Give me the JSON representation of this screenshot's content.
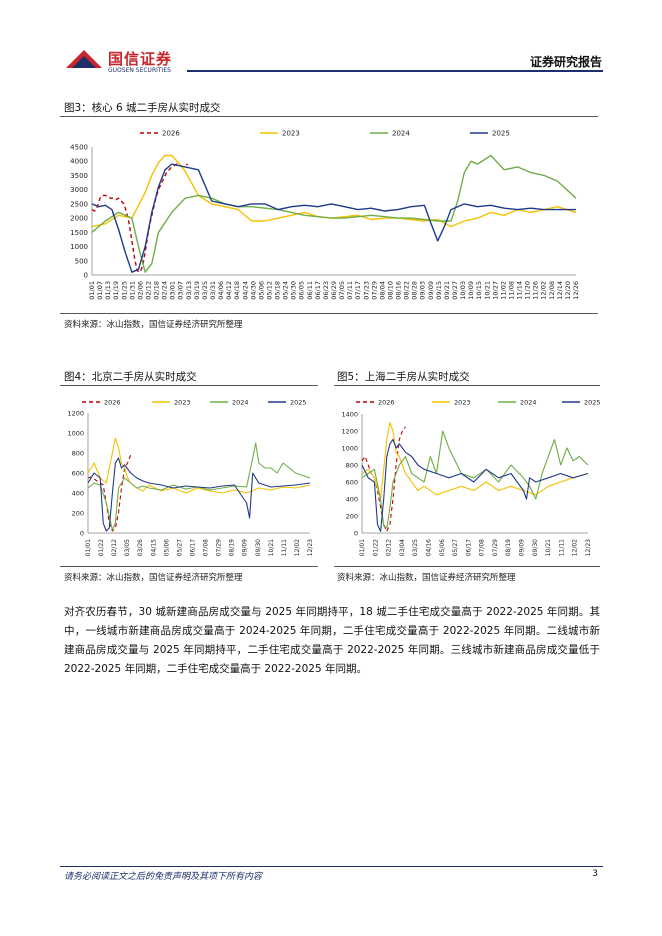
{
  "header": {
    "company_cn": "国信证券",
    "company_en": "GUOSEN SECURITIES",
    "report_type": "证券研究报告",
    "brand_red": "#c8262c",
    "brand_blue": "#1d2e6b"
  },
  "fig3": {
    "title": "图3：核心 6 城二手房从实时成交",
    "source": "资料来源：冰山指数，国信证券经济研究所整理"
  },
  "fig4": {
    "title": "图4：北京二手房从实时成交",
    "source": "资料来源：冰山指数，国信证券经济研究所整理"
  },
  "fig5": {
    "title": "图5：上海二手房从实时成交",
    "source": "资料来源：冰山指数，国信证券经济研究所整理"
  },
  "body": {
    "paragraph": "对齐农历春节，30 城新建商品房成交量与 2025 年同期持平，18 城二手住宅成交量高于 2022-2025 年同期。其中，一线城市新建商品房成交量高于 2024-2025 年同期，二手住宅成交量高于 2022-2025 年同期。二线城市新建商品房成交量与 2025 年同期持平，二手住宅成交量高于 2022-2025 年同期。三线城市新建商品房成交量低于 2022-2025 年同期，二手住宅成交量高于 2022-2025 年同期。"
  },
  "footer": {
    "disclaimer": "请务必阅读正文之后的免责声明及其项下所有内容",
    "page": "3"
  },
  "chart_data": [
    {
      "id": "fig3",
      "type": "line",
      "ylim": [
        0,
        4500
      ],
      "yticks": [
        "0",
        "500",
        "1000",
        "1500",
        "2000",
        "2500",
        "3000",
        "3500",
        "4000",
        "4500"
      ],
      "xticks": [
        "01/01",
        "01/07",
        "01/13",
        "01/19",
        "01/25",
        "01/31",
        "02/06",
        "02/12",
        "02/18",
        "02/24",
        "03/01",
        "03/07",
        "03/13",
        "03/19",
        "03/25",
        "03/31",
        "04/06",
        "04/12",
        "04/18",
        "04/24",
        "04/30",
        "05/06",
        "05/12",
        "05/18",
        "05/24",
        "05/30",
        "06/05",
        "06/11",
        "06/17",
        "06/23",
        "06/29",
        "07/05",
        "07/11",
        "07/17",
        "07/23",
        "07/29",
        "08/04",
        "08/10",
        "08/16",
        "08/22",
        "08/28",
        "09/03",
        "09/09",
        "09/15",
        "09/21",
        "09/27",
        "10/03",
        "10/09",
        "10/15",
        "10/21",
        "10/27",
        "11/02",
        "11/08",
        "11/14",
        "11/20",
        "11/26",
        "12/02",
        "12/08",
        "12/14",
        "12/20",
        "12/26"
      ],
      "legend": [
        "2026",
        "2023",
        "2024",
        "2025"
      ],
      "legend_position": "top",
      "series": [
        {
          "name": "2026",
          "color": "#c00000",
          "dashed": true,
          "x": [
            0,
            2,
            4,
            6,
            8,
            10,
            12,
            14,
            16,
            18,
            20,
            22,
            24,
            26,
            28,
            30,
            32,
            34,
            36,
            38,
            40,
            42,
            44,
            46,
            48,
            50,
            52,
            54,
            56,
            58,
            60,
            62,
            64,
            66,
            68,
            70,
            72
          ],
          "y": [
            2300,
            2250,
            2400,
            2700,
            2800,
            2800,
            2750,
            2700,
            2700,
            2650,
            2700,
            2600,
            2500,
            2200,
            1800,
            1200,
            600,
            150,
            100,
            300,
            800,
            1400,
            1900,
            2300,
            2700,
            3000,
            3200,
            3400,
            3600,
            3700,
            3800,
            3850,
            3900,
            3850,
            3800,
            3850,
            3900
          ]
        },
        {
          "name": "2023",
          "color": "#f5c000",
          "x": [
            0,
            10,
            20,
            30,
            40,
            45,
            50,
            55,
            60,
            65,
            70,
            80,
            90,
            100,
            110,
            120,
            130,
            140,
            150,
            160,
            170,
            180,
            190,
            200,
            210,
            220,
            230,
            240,
            250,
            260,
            270,
            280,
            290,
            300,
            310,
            320,
            330,
            340,
            350,
            364
          ],
          "y": [
            1700,
            1800,
            2100,
            2000,
            2900,
            3500,
            3950,
            4200,
            4200,
            3950,
            3650,
            2800,
            2500,
            2400,
            2300,
            1900,
            1900,
            2000,
            2100,
            2200,
            2050,
            2000,
            2050,
            2100,
            1950,
            2000,
            2000,
            1950,
            1900,
            1950,
            1700,
            1900,
            2000,
            2200,
            2100,
            2300,
            2200,
            2300,
            2400,
            2200
          ]
        },
        {
          "name": "2024",
          "color": "#70ad47",
          "x": [
            0,
            10,
            20,
            30,
            35,
            40,
            45,
            50,
            60,
            70,
            80,
            90,
            100,
            110,
            120,
            130,
            140,
            150,
            160,
            170,
            180,
            190,
            200,
            210,
            220,
            230,
            240,
            250,
            260,
            270,
            275,
            280,
            285,
            290,
            300,
            310,
            320,
            330,
            340,
            350,
            364
          ],
          "y": [
            1500,
            1900,
            2200,
            2000,
            1000,
            100,
            400,
            1500,
            2200,
            2700,
            2800,
            2700,
            2500,
            2400,
            2400,
            2350,
            2300,
            2200,
            2100,
            2050,
            2000,
            2000,
            2050,
            2100,
            2050,
            2000,
            2000,
            1950,
            1900,
            1900,
            2600,
            3600,
            4000,
            3900,
            4200,
            3700,
            3800,
            3600,
            3500,
            3300,
            2700
          ]
        },
        {
          "name": "2025",
          "color": "#1f3a8a",
          "x": [
            0,
            5,
            10,
            15,
            20,
            25,
            30,
            35,
            40,
            45,
            50,
            55,
            60,
            70,
            80,
            90,
            100,
            110,
            120,
            130,
            140,
            150,
            160,
            170,
            180,
            190,
            200,
            210,
            220,
            230,
            240,
            250,
            255,
            260,
            265,
            270,
            280,
            290,
            300,
            310,
            320,
            330,
            340,
            350,
            364
          ],
          "y": [
            2500,
            2400,
            2450,
            2300,
            1600,
            800,
            100,
            200,
            1000,
            2200,
            3100,
            3700,
            3900,
            3800,
            3700,
            2600,
            2500,
            2400,
            2500,
            2500,
            2300,
            2400,
            2450,
            2400,
            2500,
            2400,
            2300,
            2350,
            2250,
            2300,
            2400,
            2450,
            1800,
            1200,
            1700,
            2300,
            2500,
            2400,
            2450,
            2350,
            2300,
            2350,
            2300,
            2300,
            2300
          ]
        }
      ]
    },
    {
      "id": "fig4",
      "type": "line",
      "ylim": [
        0,
        1200
      ],
      "yticks": [
        "0",
        "200",
        "400",
        "600",
        "800",
        "1000",
        "1200"
      ],
      "xticks": [
        "01/01",
        "01/22",
        "02/12",
        "03/05",
        "03/26",
        "04/15",
        "05/06",
        "05/27",
        "06/17",
        "07/08",
        "07/29",
        "08/19",
        "09/09",
        "09/30",
        "10/21",
        "11/11",
        "12/02",
        "12/23"
      ],
      "legend": [
        "2026",
        "2023",
        "2024",
        "2025"
      ],
      "legend_position": "top",
      "series": [
        {
          "name": "2026",
          "color": "#c00000",
          "dashed": true,
          "x": [
            0,
            5,
            10,
            15,
            20,
            25,
            30,
            35,
            40,
            45,
            50,
            55,
            60,
            65,
            70
          ],
          "y": [
            550,
            560,
            540,
            520,
            500,
            480,
            300,
            100,
            20,
            50,
            200,
            450,
            650,
            700,
            780
          ]
        },
        {
          "name": "2023",
          "color": "#f5c000",
          "x": [
            0,
            10,
            20,
            30,
            40,
            45,
            50,
            55,
            60,
            65,
            70,
            80,
            90,
            100,
            120,
            140,
            160,
            180,
            200,
            220,
            240,
            260,
            280,
            300,
            320,
            340,
            364
          ],
          "y": [
            600,
            700,
            550,
            500,
            800,
            950,
            850,
            700,
            650,
            550,
            500,
            450,
            420,
            480,
            420,
            450,
            400,
            450,
            420,
            400,
            430,
            400,
            450,
            430,
            460,
            450,
            480
          ]
        },
        {
          "name": "2024",
          "color": "#70ad47",
          "x": [
            0,
            10,
            20,
            30,
            40,
            45,
            50,
            60,
            70,
            80,
            90,
            100,
            120,
            140,
            160,
            180,
            200,
            220,
            240,
            260,
            270,
            275,
            280,
            290,
            300,
            310,
            320,
            340,
            364
          ],
          "y": [
            450,
            500,
            480,
            300,
            30,
            100,
            450,
            550,
            500,
            450,
            470,
            450,
            430,
            480,
            440,
            460,
            430,
            450,
            470,
            460,
            750,
            900,
            700,
            650,
            650,
            600,
            700,
            600,
            550
          ]
        },
        {
          "name": "2025",
          "color": "#1f3a8a",
          "x": [
            0,
            10,
            20,
            25,
            30,
            35,
            40,
            45,
            50,
            55,
            60,
            70,
            80,
            90,
            100,
            120,
            140,
            160,
            180,
            200,
            220,
            240,
            260,
            265,
            270,
            280,
            290,
            300,
            320,
            340,
            364
          ],
          "y": [
            500,
            600,
            550,
            100,
            20,
            50,
            400,
            700,
            750,
            650,
            680,
            600,
            550,
            520,
            500,
            480,
            450,
            470,
            460,
            450,
            470,
            480,
            300,
            150,
            600,
            500,
            480,
            460,
            470,
            480,
            500
          ]
        }
      ]
    },
    {
      "id": "fig5",
      "type": "line",
      "ylim": [
        0,
        1400
      ],
      "yticks": [
        "0",
        "200",
        "400",
        "600",
        "800",
        "1000",
        "1200",
        "1400"
      ],
      "xticks": [
        "01/01",
        "01/22",
        "02/12",
        "03/04",
        "03/25",
        "04/16",
        "05/06",
        "05/27",
        "06/17",
        "07/08",
        "07/29",
        "08/19",
        "09/09",
        "09/30",
        "10/21",
        "11/11",
        "12/02",
        "12/23"
      ],
      "legend": [
        "2026",
        "2023",
        "2024",
        "2025"
      ],
      "legend_position": "top",
      "series": [
        {
          "name": "2026",
          "color": "#c00000",
          "dashed": true,
          "x": [
            0,
            5,
            10,
            15,
            20,
            25,
            30,
            35,
            40,
            45,
            50,
            55,
            60,
            65,
            70
          ],
          "y": [
            850,
            900,
            800,
            700,
            650,
            500,
            300,
            100,
            20,
            100,
            400,
            800,
            1100,
            1200,
            1250
          ]
        },
        {
          "name": "2023",
          "color": "#f5c000",
          "x": [
            0,
            10,
            20,
            30,
            40,
            45,
            50,
            55,
            60,
            70,
            80,
            90,
            100,
            120,
            140,
            160,
            180,
            200,
            220,
            240,
            260,
            280,
            300,
            320,
            340,
            364
          ],
          "y": [
            700,
            750,
            650,
            400,
            1100,
            1300,
            1200,
            950,
            900,
            700,
            600,
            500,
            550,
            450,
            500,
            550,
            500,
            600,
            500,
            550,
            500,
            450,
            550,
            600,
            650,
            700
          ]
        },
        {
          "name": "2024",
          "color": "#70ad47",
          "x": [
            0,
            10,
            20,
            30,
            35,
            40,
            45,
            50,
            60,
            70,
            80,
            90,
            100,
            110,
            120,
            130,
            140,
            160,
            180,
            200,
            220,
            240,
            260,
            270,
            280,
            290,
            300,
            310,
            320,
            330,
            340,
            350,
            364
          ],
          "y": [
            650,
            700,
            750,
            400,
            80,
            60,
            300,
            600,
            800,
            900,
            700,
            650,
            600,
            900,
            700,
            1200,
            1000,
            700,
            650,
            750,
            600,
            800,
            650,
            550,
            400,
            700,
            900,
            1100,
            800,
            1000,
            850,
            900,
            800
          ]
        },
        {
          "name": "2025",
          "color": "#1f3a8a",
          "x": [
            0,
            10,
            20,
            25,
            30,
            35,
            40,
            45,
            50,
            55,
            60,
            70,
            80,
            90,
            100,
            120,
            140,
            160,
            180,
            200,
            220,
            240,
            260,
            265,
            270,
            280,
            300,
            320,
            340,
            364
          ],
          "y": [
            800,
            650,
            600,
            100,
            20,
            400,
            900,
            1050,
            1100,
            1000,
            1050,
            950,
            900,
            800,
            750,
            700,
            650,
            700,
            600,
            750,
            650,
            700,
            500,
            400,
            650,
            600,
            650,
            700,
            650,
            700
          ]
        }
      ]
    }
  ]
}
